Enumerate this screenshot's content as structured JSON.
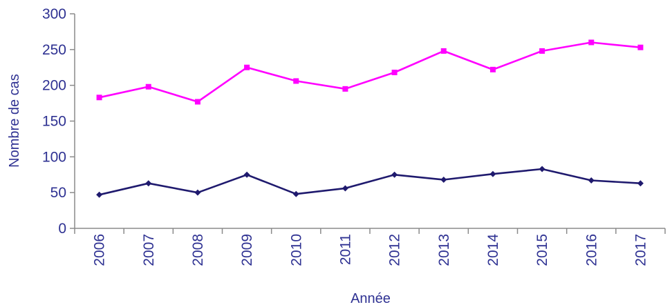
{
  "chart_data": {
    "type": "line",
    "xlabel": "Année",
    "ylabel": "Nombre de cas",
    "ylim": [
      0,
      300
    ],
    "yticks": [
      0,
      50,
      100,
      150,
      200,
      250,
      300
    ],
    "grid": false,
    "legend": "none",
    "categories": [
      "2006",
      "2007",
      "2008",
      "2009",
      "2010",
      "2011",
      "2012",
      "2013",
      "2014",
      "2015",
      "2016",
      "2017"
    ],
    "series": [
      {
        "color": "#ff00ff",
        "marker": "square",
        "values": [
          183,
          198,
          177,
          225,
          206,
          195,
          218,
          248,
          222,
          248,
          260,
          253
        ]
      },
      {
        "color": "#1f1a6e",
        "marker": "diamond",
        "values": [
          47,
          63,
          50,
          75,
          48,
          56,
          75,
          68,
          76,
          83,
          67,
          63
        ]
      }
    ]
  }
}
